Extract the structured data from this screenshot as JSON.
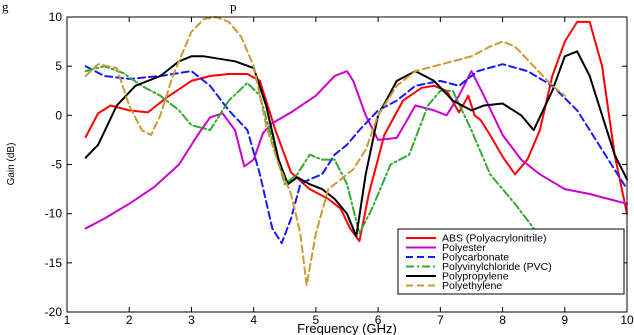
{
  "header_fragment": "g",
  "header_fragment_2": "p",
  "chart_data": {
    "type": "line",
    "title": "",
    "xlabel": "Frequency (GHz)",
    "ylabel": "Gain (dB)",
    "xlim": [
      1,
      10
    ],
    "ylim": [
      -20,
      10
    ],
    "xticks": [
      1,
      2,
      3,
      4,
      5,
      6,
      7,
      8,
      9,
      10
    ],
    "yticks": [
      10,
      5,
      0,
      -5,
      -10,
      -15,
      -20
    ],
    "grid": false,
    "legend_position": "bottom-right",
    "series": [
      {
        "name": "ABS (Polyacrylonitrile)",
        "color": "#ff0000",
        "dash": "solid",
        "x": [
          1.3,
          1.5,
          1.7,
          2.0,
          2.3,
          2.6,
          3.0,
          3.3,
          3.6,
          3.9,
          4.1,
          4.35,
          4.6,
          4.9,
          5.2,
          5.4,
          5.55,
          5.7,
          5.85,
          6.1,
          6.4,
          6.7,
          6.9,
          7.1,
          7.3,
          7.45,
          7.55,
          7.65,
          7.8,
          8.0,
          8.2,
          8.4,
          8.6,
          8.8,
          9.0,
          9.2,
          9.4,
          9.6,
          9.8,
          10.0
        ],
        "y": [
          -2.2,
          0.2,
          1.0,
          0.5,
          0.3,
          1.8,
          3.5,
          4.0,
          4.2,
          4.2,
          3.5,
          -1.5,
          -5.8,
          -7.5,
          -8.5,
          -9.5,
          -11.5,
          -12.8,
          -8.0,
          -2.0,
          1.5,
          2.8,
          3.0,
          2.5,
          0.3,
          2.0,
          0.0,
          -0.5,
          -2.0,
          -4.2,
          -6.0,
          -4.5,
          -1.5,
          4.0,
          7.5,
          9.5,
          9.5,
          5.0,
          -4.0,
          -10.0
        ]
      },
      {
        "name": "Polyester",
        "color": "#cc00cc",
        "dash": "solid",
        "x": [
          1.3,
          1.6,
          2.0,
          2.4,
          2.8,
          3.1,
          3.3,
          3.5,
          3.7,
          3.85,
          4.0,
          4.15,
          4.3,
          4.6,
          5.0,
          5.3,
          5.5,
          5.6,
          5.8,
          6.0,
          6.3,
          6.6,
          6.9,
          7.1,
          7.3,
          7.5,
          7.7,
          8.0,
          8.3,
          8.6,
          9.0,
          9.4,
          9.7,
          10.0
        ],
        "y": [
          -11.5,
          -10.5,
          -9.0,
          -7.3,
          -5.0,
          -2.0,
          -0.2,
          0.2,
          -1.5,
          -5.2,
          -4.5,
          -1.8,
          -0.8,
          0.3,
          2.0,
          4.0,
          4.5,
          3.5,
          0.0,
          -2.5,
          -2.3,
          1.0,
          0.5,
          0.0,
          2.0,
          4.5,
          2.0,
          -2.0,
          -4.5,
          -6.0,
          -7.5,
          -8.0,
          -8.5,
          -9.0
        ]
      },
      {
        "name": "Polycarbonate",
        "color": "#1a1aff",
        "dash": "dashed",
        "x": [
          1.3,
          1.6,
          2.0,
          2.5,
          3.0,
          3.3,
          3.6,
          3.9,
          4.1,
          4.3,
          4.45,
          4.6,
          4.75,
          4.9,
          5.1,
          5.3,
          5.5,
          5.7,
          6.0,
          6.3,
          6.6,
          7.0,
          7.3,
          7.6,
          8.0,
          8.4,
          8.8,
          9.2,
          9.6,
          10.0
        ],
        "y": [
          5.0,
          4.0,
          3.7,
          4.0,
          4.5,
          3.0,
          0.5,
          -1.5,
          -6.0,
          -11.5,
          -13.0,
          -10.5,
          -7.0,
          -6.5,
          -6.0,
          -4.0,
          -3.0,
          -1.5,
          0.5,
          1.5,
          3.0,
          3.5,
          3.0,
          4.5,
          5.2,
          4.5,
          3.0,
          0.5,
          -3.5,
          -7.5
        ]
      },
      {
        "name": "Polyvinylchloride (PVC)",
        "color": "#33aa33",
        "dash": "dashdot",
        "x": [
          1.3,
          1.6,
          1.9,
          2.2,
          2.5,
          2.8,
          3.0,
          3.3,
          3.6,
          3.9,
          4.1,
          4.3,
          4.5,
          4.7,
          4.9,
          5.1,
          5.3,
          5.5,
          5.7,
          5.9,
          6.2,
          6.5,
          6.8,
          7.0,
          7.2,
          7.5,
          7.8,
          8.2,
          8.5,
          8.8
        ],
        "y": [
          4.5,
          5.0,
          4.3,
          3.0,
          2.0,
          0.5,
          -1.0,
          -1.5,
          1.5,
          3.3,
          2.0,
          -2.5,
          -7.0,
          -6.0,
          -4.0,
          -4.5,
          -4.5,
          -7.0,
          -12.0,
          -9.5,
          -5.0,
          -4.0,
          1.0,
          2.5,
          2.5,
          -1.5,
          -6.0,
          -9.0,
          -11.5,
          -13.5
        ]
      },
      {
        "name": "Polypropylene",
        "color": "#000000",
        "dash": "solid",
        "x": [
          1.3,
          1.5,
          1.8,
          2.1,
          2.5,
          2.8,
          3.0,
          3.2,
          3.4,
          3.7,
          4.0,
          4.2,
          4.4,
          4.55,
          4.7,
          4.9,
          5.1,
          5.3,
          5.5,
          5.65,
          5.8,
          6.0,
          6.3,
          6.6,
          6.9,
          7.2,
          7.5,
          7.7,
          8.0,
          8.3,
          8.5,
          8.8,
          9.0,
          9.2,
          9.4,
          9.6,
          9.8,
          10.0
        ],
        "y": [
          -4.3,
          -3.0,
          1.0,
          3.0,
          4.0,
          5.5,
          6.0,
          6.0,
          5.8,
          5.5,
          4.8,
          1.0,
          -4.5,
          -7.0,
          -6.3,
          -7.0,
          -7.5,
          -8.5,
          -10.0,
          -12.3,
          -6.0,
          0.0,
          3.5,
          4.5,
          3.5,
          1.5,
          0.5,
          1.0,
          1.2,
          0.0,
          -1.5,
          2.5,
          6.0,
          6.5,
          4.0,
          0.0,
          -4.0,
          -6.5
        ]
      },
      {
        "name": "Polyethylene",
        "color": "#cc9933",
        "dash": "dashed",
        "x": [
          1.3,
          1.5,
          1.8,
          2.0,
          2.2,
          2.35,
          2.5,
          2.7,
          3.0,
          3.2,
          3.4,
          3.6,
          3.8,
          4.0,
          4.2,
          4.4,
          4.6,
          4.75,
          4.85,
          5.0,
          5.2,
          5.4,
          5.6,
          5.8,
          6.0,
          6.3,
          6.6,
          6.9,
          7.2,
          7.5,
          7.8,
          8.0,
          8.2,
          8.5,
          8.8,
          9.0
        ],
        "y": [
          4.0,
          5.2,
          4.8,
          1.0,
          -1.5,
          -2.0,
          0.0,
          4.0,
          8.5,
          9.8,
          10.0,
          9.5,
          8.0,
          5.0,
          -1.0,
          -5.0,
          -8.0,
          -12.0,
          -17.3,
          -12.0,
          -7.5,
          -6.5,
          -5.5,
          -3.5,
          0.0,
          3.0,
          4.5,
          5.0,
          5.5,
          6.0,
          7.0,
          7.5,
          7.0,
          5.0,
          3.0,
          2.0
        ]
      }
    ]
  }
}
